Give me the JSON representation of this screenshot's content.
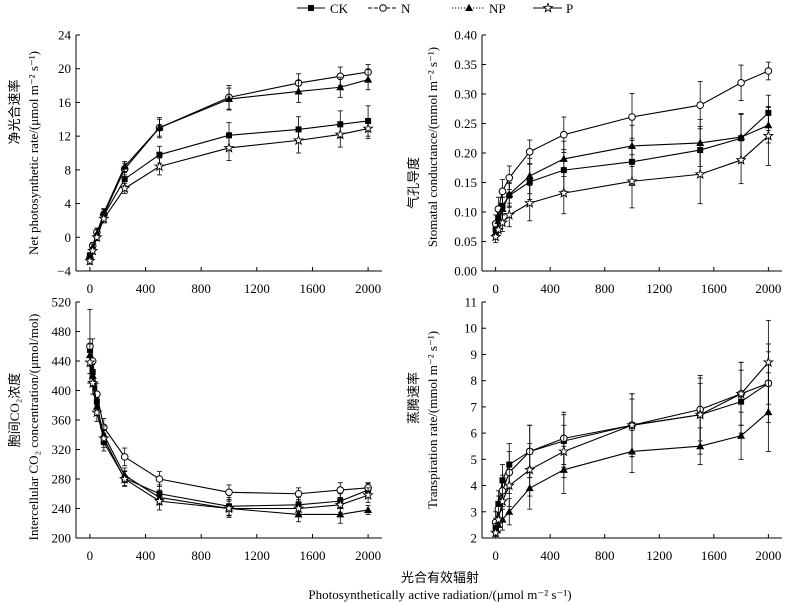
{
  "legend": {
    "position": "top-center",
    "entries": [
      {
        "name": "CK",
        "marker": "filled-square",
        "line": "solid"
      },
      {
        "name": "N",
        "marker": "open-circle",
        "line": "dashed"
      },
      {
        "name": "NP",
        "marker": "filled-triangle",
        "line": "dotted"
      },
      {
        "name": "P",
        "marker": "open-star",
        "line": "solid"
      }
    ]
  },
  "figure": {
    "xlabel_cn": "光合有效辐射",
    "xlabel_en": "Photosynthetically active radiation/(μmol m⁻² s⁻¹)"
  },
  "chart_data": [
    {
      "type": "line",
      "ylabel_cn": "净光合速率",
      "ylabel_en": "Net photosynthetic rate/(μmol m⁻² s⁻¹)",
      "grid": false,
      "x": [
        0,
        20,
        50,
        100,
        250,
        500,
        1000,
        1500,
        1800,
        2000
      ],
      "xlim": [
        -100,
        2100
      ],
      "ylim": [
        -4,
        24
      ],
      "xticks": [
        "0",
        "400",
        "800",
        "1200",
        "1600",
        "2000"
      ],
      "yticks": [
        "−4",
        "0",
        "4",
        "8",
        "12",
        "16",
        "20",
        "24"
      ],
      "series": [
        {
          "name": "CK",
          "values": [
            -2.2,
            -1.3,
            0.3,
            2.6,
            6.9,
            9.8,
            12.1,
            12.8,
            13.4,
            13.8
          ],
          "error": [
            0.4,
            0.4,
            0.5,
            0.5,
            0.8,
            1.0,
            1.5,
            1.5,
            1.6,
            1.8
          ]
        },
        {
          "name": "N",
          "values": [
            -2.5,
            -1.0,
            0.6,
            2.7,
            8.1,
            13.0,
            16.6,
            18.3,
            19.1,
            19.6
          ],
          "error": [
            0.4,
            0.4,
            0.5,
            0.6,
            0.7,
            1.2,
            1.4,
            1.1,
            1.1,
            0.9
          ]
        },
        {
          "name": "NP",
          "values": [
            -2.3,
            -1.2,
            0.4,
            2.9,
            8.4,
            13.0,
            16.4,
            17.3,
            17.8,
            18.7
          ],
          "error": [
            0.4,
            0.4,
            0.5,
            0.5,
            0.6,
            1.0,
            1.3,
            1.3,
            1.2,
            1.2
          ]
        },
        {
          "name": "P",
          "values": [
            -2.8,
            -1.6,
            0.0,
            2.2,
            5.8,
            8.4,
            10.6,
            11.5,
            12.2,
            12.9
          ],
          "error": [
            0.4,
            0.4,
            0.4,
            0.5,
            0.6,
            1.0,
            1.5,
            1.5,
            1.5,
            1.2
          ]
        }
      ]
    },
    {
      "type": "line",
      "ylabel_cn": "气孔导度",
      "ylabel_en": "Stomatal conductance/(mmol m⁻² s⁻¹)",
      "grid": false,
      "x": [
        0,
        20,
        50,
        100,
        250,
        500,
        1000,
        1500,
        1800,
        2000
      ],
      "xlim": [
        -100,
        2100
      ],
      "ylim": [
        0,
        0.4
      ],
      "xticks": [
        "0",
        "400",
        "800",
        "1200",
        "1600",
        "2000"
      ],
      "yticks": [
        "0.00",
        "0.05",
        "0.10",
        "0.15",
        "0.20",
        "0.25",
        "0.30",
        "0.35",
        "0.40"
      ],
      "series": [
        {
          "name": "CK",
          "values": [
            0.07,
            0.09,
            0.11,
            0.128,
            0.151,
            0.171,
            0.185,
            0.205,
            0.225,
            0.268
          ],
          "error": [
            0.01,
            0.012,
            0.015,
            0.02,
            0.03,
            0.035,
            0.04,
            0.04,
            0.04,
            0.03
          ]
        },
        {
          "name": "N",
          "values": [
            0.08,
            0.105,
            0.135,
            0.158,
            0.202,
            0.231,
            0.261,
            0.281,
            0.319,
            0.339
          ],
          "error": [
            0.015,
            0.02,
            0.02,
            0.02,
            0.02,
            0.03,
            0.04,
            0.04,
            0.03,
            0.015
          ]
        },
        {
          "name": "NP",
          "values": [
            0.065,
            0.085,
            0.105,
            0.13,
            0.161,
            0.19,
            0.212,
            0.217,
            0.227,
            0.247
          ],
          "error": [
            0.01,
            0.015,
            0.02,
            0.02,
            0.03,
            0.03,
            0.035,
            0.04,
            0.04,
            0.03
          ]
        },
        {
          "name": "P",
          "values": [
            0.058,
            0.07,
            0.082,
            0.095,
            0.115,
            0.132,
            0.152,
            0.164,
            0.188,
            0.229
          ],
          "error": [
            0.01,
            0.01,
            0.015,
            0.02,
            0.03,
            0.035,
            0.045,
            0.05,
            0.04,
            0.05
          ]
        }
      ]
    },
    {
      "type": "line",
      "ylabel_cn": "胞间CO₂浓度",
      "ylabel_en": "Intercellular CO₂ concentration/(μmol/mol)",
      "grid": false,
      "x": [
        0,
        20,
        50,
        100,
        250,
        500,
        1000,
        1500,
        1800,
        2000
      ],
      "xlim": [
        -100,
        2100
      ],
      "ylim": [
        200,
        520
      ],
      "xticks": [
        "0",
        "400",
        "800",
        "1200",
        "1600",
        "2000"
      ],
      "yticks": [
        "200",
        "240",
        "280",
        "320",
        "360",
        "400",
        "440",
        "480",
        "520"
      ],
      "series": [
        {
          "name": "CK",
          "values": [
            455,
            425,
            385,
            330,
            281,
            260,
            243,
            245,
            250,
            265
          ],
          "error": [
            15,
            15,
            12,
            12,
            10,
            12,
            12,
            10,
            10,
            10
          ]
        },
        {
          "name": "N",
          "values": [
            460,
            440,
            395,
            350,
            310,
            280,
            262,
            260,
            265,
            268
          ],
          "error": [
            50,
            30,
            15,
            12,
            12,
            10,
            10,
            8,
            10,
            6
          ]
        },
        {
          "name": "NP",
          "values": [
            448,
            420,
            378,
            340,
            285,
            255,
            240,
            232,
            232,
            238
          ],
          "error": [
            15,
            15,
            12,
            12,
            10,
            10,
            10,
            10,
            12,
            6
          ]
        },
        {
          "name": "P",
          "values": [
            438,
            410,
            370,
            335,
            280,
            250,
            240,
            240,
            245,
            258
          ],
          "error": [
            15,
            15,
            12,
            12,
            10,
            12,
            12,
            10,
            10,
            10
          ]
        }
      ]
    },
    {
      "type": "line",
      "ylabel_cn": "蒸腾速率",
      "ylabel_en": "Transpiration rate/(mmol m⁻² s⁻¹)",
      "grid": false,
      "x": [
        0,
        20,
        50,
        100,
        250,
        500,
        1000,
        1500,
        1800,
        2000
      ],
      "xlim": [
        -100,
        2100
      ],
      "ylim": [
        2,
        11
      ],
      "xticks": [
        "0",
        "400",
        "800",
        "1200",
        "1600",
        "2000"
      ],
      "yticks": [
        "2",
        "3",
        "4",
        "5",
        "6",
        "7",
        "8",
        "9",
        "10",
        "11"
      ],
      "series": [
        {
          "name": "CK",
          "values": [
            2.4,
            3.3,
            4.2,
            4.8,
            5.3,
            5.7,
            6.3,
            6.7,
            7.2,
            7.9
          ],
          "error": [
            0.3,
            0.5,
            0.6,
            0.8,
            1.0,
            1.0,
            1.0,
            1.2,
            1.2,
            1.5
          ]
        },
        {
          "name": "N",
          "values": [
            2.6,
            3.1,
            3.8,
            4.5,
            5.3,
            5.8,
            6.3,
            6.9,
            7.5,
            7.9
          ],
          "error": [
            0.4,
            0.5,
            0.6,
            0.8,
            1.0,
            1.0,
            1.2,
            1.2,
            1.2,
            1.2
          ]
        },
        {
          "name": "NP",
          "values": [
            2.3,
            2.5,
            2.7,
            3.0,
            3.9,
            4.6,
            5.3,
            5.5,
            5.9,
            6.8
          ],
          "error": [
            0.25,
            0.3,
            0.4,
            0.5,
            0.8,
            0.9,
            0.8,
            0.7,
            0.9,
            1.5
          ]
        },
        {
          "name": "P",
          "values": [
            2.2,
            2.7,
            3.4,
            4.0,
            4.6,
            5.3,
            6.3,
            6.7,
            7.5,
            8.7
          ],
          "error": [
            0.2,
            0.5,
            0.7,
            0.8,
            1.0,
            1.0,
            1.2,
            1.5,
            1.2,
            1.6
          ]
        }
      ]
    }
  ]
}
